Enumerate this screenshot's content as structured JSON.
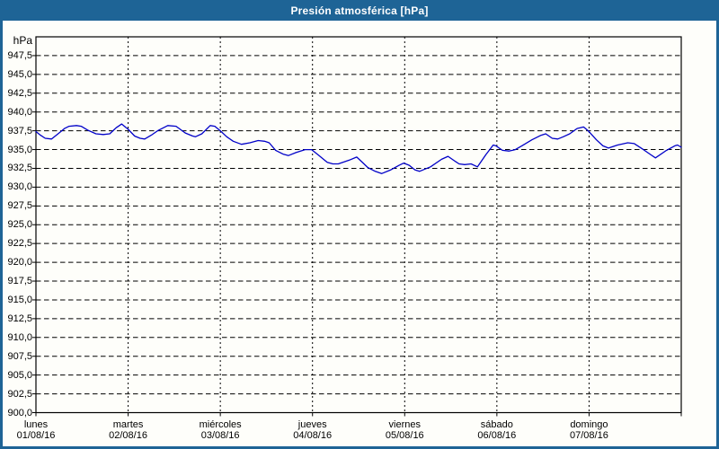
{
  "window": {
    "title": "Presión atmosférica [hPa]",
    "colors": {
      "title_bar": "#1e6496",
      "title_text": "#ffffff",
      "border": "#1e6496",
      "background": "#fefefa",
      "grid": "#000000",
      "axis": "#000000",
      "text": "#000000",
      "line": "#0000c8"
    }
  },
  "chart_data": {
    "type": "line",
    "title": "Presión atmosférica [hPa]",
    "ylabel": "hPa",
    "grid": true,
    "legend": "none",
    "y_axis": {
      "unit": "hPa",
      "min": 900,
      "max": 950,
      "tick_step": 2.5,
      "decimal_separator": ",",
      "tick_labels": [
        "947,5",
        "945,0",
        "942,5",
        "940,0",
        "937,5",
        "935,0",
        "932,5",
        "930,0",
        "927,5",
        "925,0",
        "922,5",
        "920,0",
        "917,5",
        "915,0",
        "912,5",
        "910,0",
        "907,5",
        "905,0",
        "902,5",
        "900,0"
      ]
    },
    "x_axis": {
      "span_days": 7,
      "days": [
        {
          "name": "lunes",
          "date": "01/08/16"
        },
        {
          "name": "martes",
          "date": "02/08/16"
        },
        {
          "name": "miércoles",
          "date": "03/08/16"
        },
        {
          "name": "jueves",
          "date": "04/08/16"
        },
        {
          "name": "viernes",
          "date": "05/08/16"
        },
        {
          "name": "sábado",
          "date": "06/08/16"
        },
        {
          "name": "domingo",
          "date": "07/08/16"
        }
      ]
    },
    "series": [
      {
        "name": "Presión atmosférica",
        "color": "#0000c8",
        "points_day_hpa": [
          [
            0.0,
            937.4
          ],
          [
            0.05,
            936.9
          ],
          [
            0.1,
            936.5
          ],
          [
            0.17,
            936.4
          ],
          [
            0.24,
            937.1
          ],
          [
            0.31,
            937.8
          ],
          [
            0.36,
            938.1
          ],
          [
            0.44,
            938.2
          ],
          [
            0.49,
            938.1
          ],
          [
            0.56,
            937.6
          ],
          [
            0.65,
            937.1
          ],
          [
            0.73,
            937.0
          ],
          [
            0.8,
            937.1
          ],
          [
            0.87,
            937.9
          ],
          [
            0.93,
            938.4
          ],
          [
            1.0,
            937.7
          ],
          [
            1.07,
            936.8
          ],
          [
            1.13,
            936.5
          ],
          [
            1.18,
            936.4
          ],
          [
            1.25,
            936.9
          ],
          [
            1.32,
            937.5
          ],
          [
            1.43,
            938.2
          ],
          [
            1.52,
            938.1
          ],
          [
            1.62,
            937.2
          ],
          [
            1.7,
            936.8
          ],
          [
            1.73,
            936.7
          ],
          [
            1.8,
            937.1
          ],
          [
            1.89,
            938.2
          ],
          [
            1.94,
            938.1
          ],
          [
            2.0,
            937.5
          ],
          [
            2.07,
            936.7
          ],
          [
            2.14,
            936.1
          ],
          [
            2.23,
            935.7
          ],
          [
            2.32,
            935.9
          ],
          [
            2.41,
            936.2
          ],
          [
            2.48,
            936.1
          ],
          [
            2.53,
            935.9
          ],
          [
            2.6,
            934.9
          ],
          [
            2.68,
            934.4
          ],
          [
            2.74,
            934.2
          ],
          [
            2.82,
            934.6
          ],
          [
            2.92,
            935.0
          ],
          [
            2.99,
            935.0
          ],
          [
            3.06,
            934.3
          ],
          [
            3.16,
            933.3
          ],
          [
            3.22,
            933.1
          ],
          [
            3.28,
            933.1
          ],
          [
            3.4,
            933.6
          ],
          [
            3.48,
            934.0
          ],
          [
            3.55,
            933.2
          ],
          [
            3.6,
            932.6
          ],
          [
            3.68,
            932.1
          ],
          [
            3.75,
            931.8
          ],
          [
            3.85,
            932.3
          ],
          [
            3.94,
            932.9
          ],
          [
            3.99,
            933.2
          ],
          [
            4.05,
            932.9
          ],
          [
            4.11,
            932.3
          ],
          [
            4.16,
            932.1
          ],
          [
            4.28,
            932.7
          ],
          [
            4.4,
            933.7
          ],
          [
            4.47,
            934.1
          ],
          [
            4.54,
            933.5
          ],
          [
            4.59,
            933.1
          ],
          [
            4.65,
            933.0
          ],
          [
            4.72,
            933.1
          ],
          [
            4.79,
            932.7
          ],
          [
            4.88,
            934.3
          ],
          [
            4.96,
            935.6
          ],
          [
            4.99,
            935.5
          ],
          [
            5.06,
            934.9
          ],
          [
            5.13,
            934.8
          ],
          [
            5.2,
            935.0
          ],
          [
            5.27,
            935.5
          ],
          [
            5.38,
            936.3
          ],
          [
            5.48,
            936.9
          ],
          [
            5.53,
            937.1
          ],
          [
            5.6,
            936.5
          ],
          [
            5.66,
            936.4
          ],
          [
            5.72,
            936.7
          ],
          [
            5.79,
            937.1
          ],
          [
            5.87,
            937.8
          ],
          [
            5.94,
            938.0
          ],
          [
            5.99,
            937.5
          ],
          [
            6.08,
            936.3
          ],
          [
            6.15,
            935.5
          ],
          [
            6.21,
            935.2
          ],
          [
            6.31,
            935.6
          ],
          [
            6.42,
            935.9
          ],
          [
            6.49,
            935.8
          ],
          [
            6.59,
            935.0
          ],
          [
            6.67,
            934.3
          ],
          [
            6.72,
            933.9
          ],
          [
            6.84,
            934.9
          ],
          [
            6.93,
            935.5
          ],
          [
            6.96,
            935.6
          ],
          [
            7.0,
            935.3
          ]
        ]
      }
    ]
  }
}
